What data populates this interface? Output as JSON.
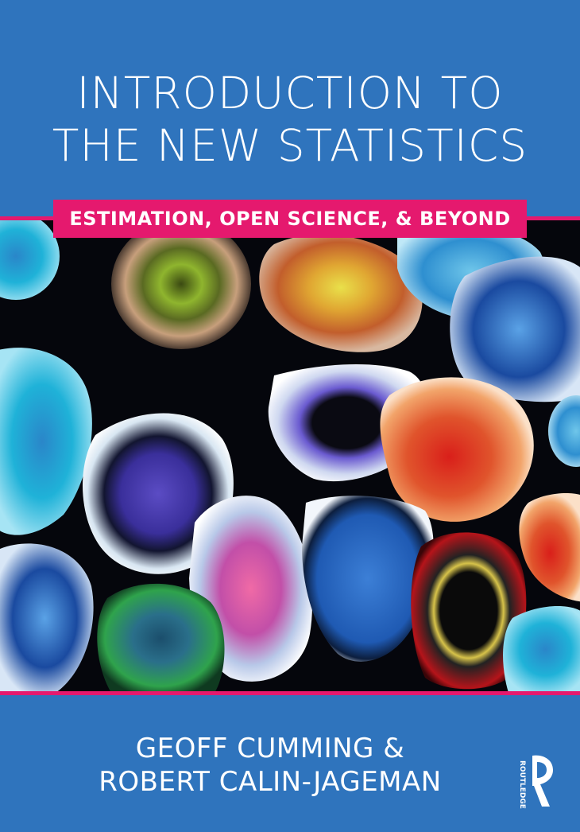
{
  "cover": {
    "title_line1": "INTRODUCTION TO",
    "title_line2": "THE NEW STATISTICS",
    "subtitle": "ESTIMATION, OPEN SCIENCE, & BEYOND",
    "author_line1": "GEOFF CUMMING &",
    "author_line2": "ROBERT CALIN-JAGEMAN",
    "publisher": "ROUTLEDGE"
  },
  "colors": {
    "background": "#2f74bd",
    "accent": "#e5196e",
    "text": "#ffffff",
    "art_background": "#05060c"
  },
  "icons": {
    "publisher_logo": "routledge-r-logo-icon"
  }
}
